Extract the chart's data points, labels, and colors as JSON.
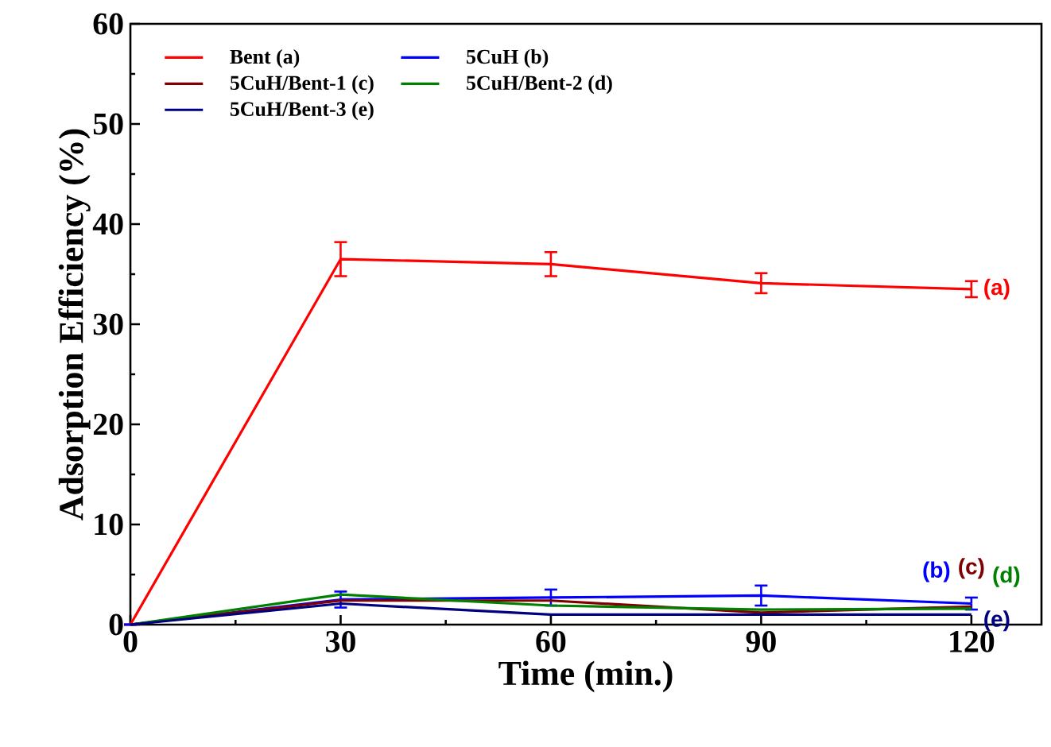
{
  "chart_data": {
    "type": "line",
    "xlabel": "Time (min.)",
    "ylabel": "Adsorption Efficiency (%)",
    "x": [
      0,
      30,
      60,
      90,
      120
    ],
    "xlim": [
      0,
      130
    ],
    "xticks": [
      0,
      30,
      60,
      90,
      120
    ],
    "ylim": [
      0,
      60
    ],
    "yticks": [
      0,
      10,
      20,
      30,
      40,
      50,
      60
    ],
    "series": [
      {
        "name": "Bent (a)",
        "color": "#ff0000",
        "values": [
          0,
          36.5,
          36.0,
          34.1,
          33.5
        ],
        "errors": [
          null,
          1.7,
          1.2,
          1.0,
          0.8
        ]
      },
      {
        "name": "5CuH (b)",
        "color": "#0000ff",
        "values": [
          0,
          2.5,
          2.7,
          2.9,
          2.1
        ],
        "errors": [
          null,
          0.8,
          0.8,
          1.0,
          0.6
        ]
      },
      {
        "name": "5CuH/Bent-1 (c)",
        "color": "#800000",
        "values": [
          0,
          2.4,
          2.4,
          1.2,
          1.8
        ]
      },
      {
        "name": "5CuH/Bent-2 (d)",
        "color": "#008000",
        "values": [
          0,
          3.0,
          1.9,
          1.5,
          1.6
        ]
      },
      {
        "name": "5CuH/Bent-3 (e)",
        "color": "#000080",
        "values": [
          0,
          2.1,
          1.0,
          1.0,
          1.0
        ]
      }
    ],
    "annotations": [
      "(a)",
      "(b)",
      "(c)",
      "(d)",
      "(e)"
    ],
    "legend": "top left",
    "marker": "none",
    "line_style": "solid",
    "grid": false
  }
}
